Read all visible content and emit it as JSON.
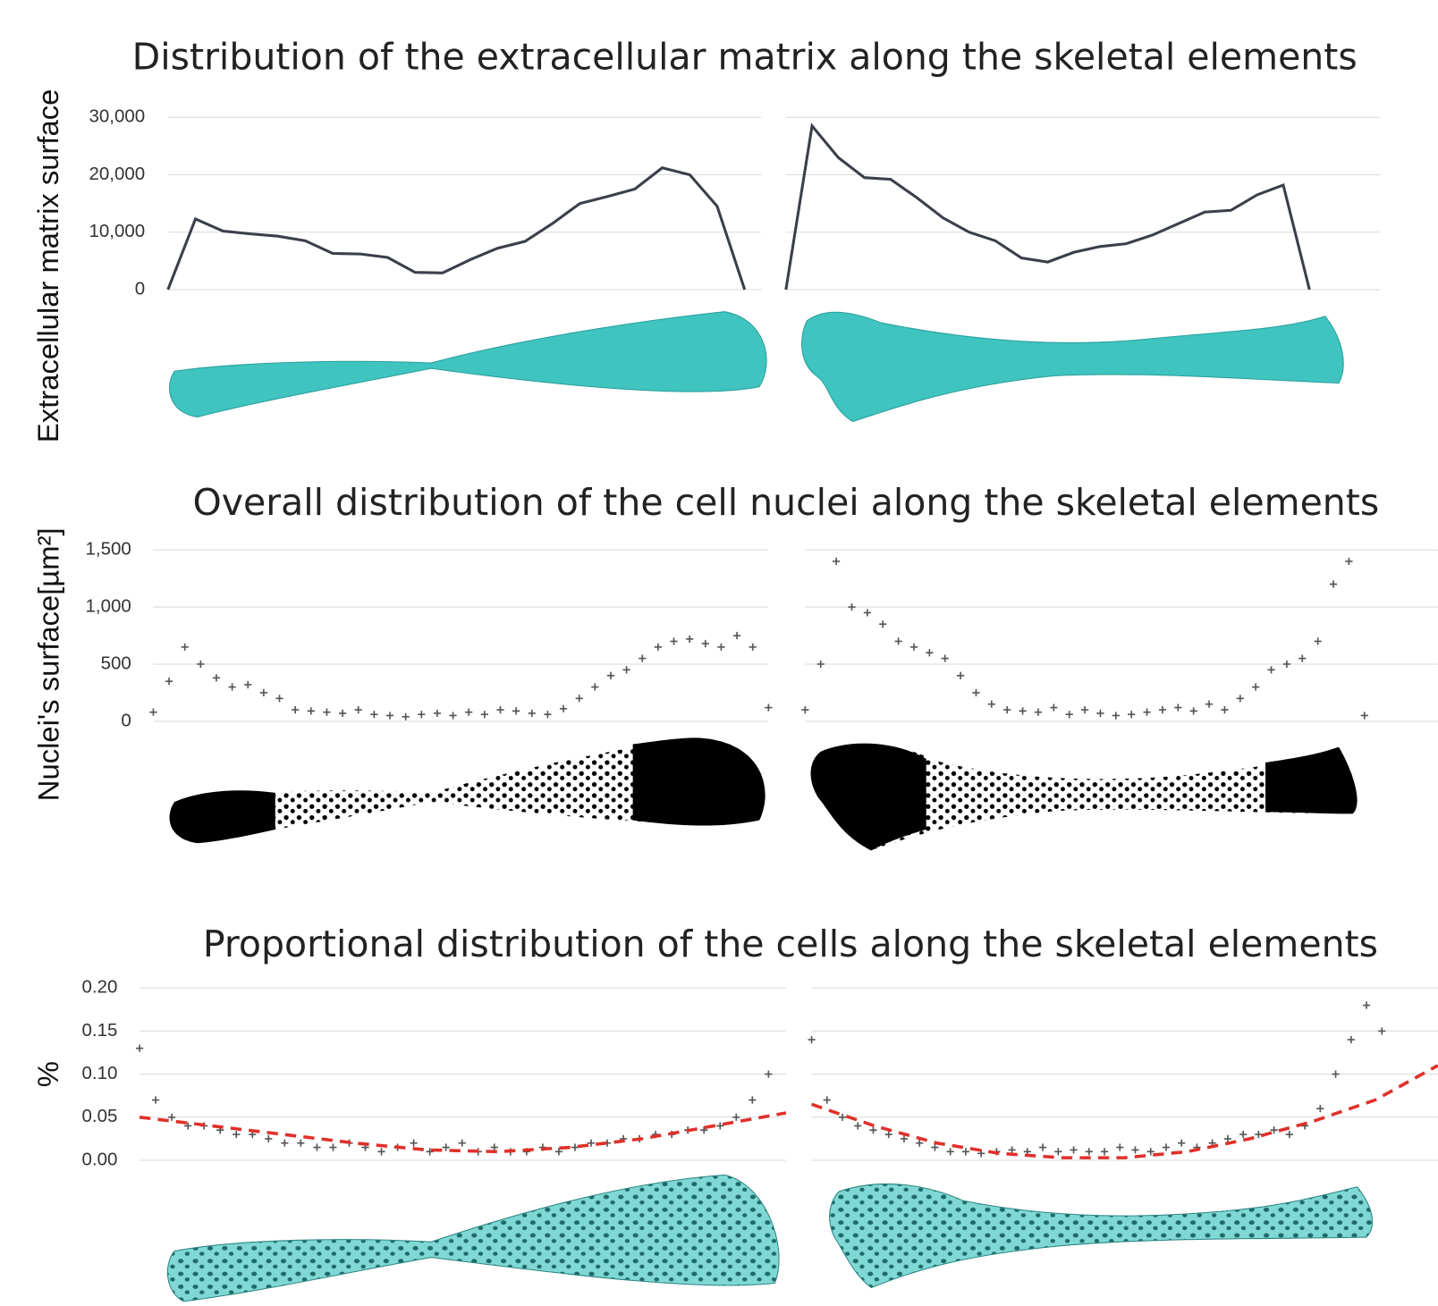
{
  "chart_data": [
    {
      "type": "line",
      "title": "Distribution of the extracellular matrix along the skeletal elements",
      "y_label": "Extracellular matrix surface",
      "ylim": [
        0,
        30000
      ],
      "yticks": [
        0,
        {
          "value": 10000,
          "label": "10,000"
        },
        {
          "value": 20000,
          "label": "20,000"
        },
        {
          "value": 30000,
          "label": "30,000"
        }
      ],
      "grid": true,
      "series": [
        {
          "color": "#3a3f4a",
          "values": [
            0,
            12300,
            10200,
            9700,
            9300,
            8500,
            6300,
            6200,
            5600,
            3000,
            2900,
            5200,
            7200,
            8400,
            11500,
            15000,
            16200,
            17500,
            21200,
            20000,
            14500,
            0
          ]
        },
        {
          "color": "#3a3f4a",
          "values": [
            0,
            28500,
            23000,
            19500,
            19200,
            16000,
            12500,
            10000,
            8500,
            5500,
            4800,
            6500,
            7500,
            8000,
            9500,
            11500,
            13500,
            13800,
            16500,
            18200,
            0
          ]
        }
      ]
    },
    {
      "type": "scatter",
      "title": "Overall distribution of the cell nuclei along the skeletal elements",
      "y_label": "Nuclei's surface[µm²]",
      "ylim": [
        0,
        1500
      ],
      "yticks": [
        0,
        500,
        {
          "value": 1000,
          "label": "1,000"
        },
        {
          "value": 1500,
          "label": "1,500"
        }
      ],
      "grid": true,
      "series": [
        {
          "color": "#555555",
          "values": [
            80,
            350,
            650,
            500,
            380,
            300,
            320,
            250,
            200,
            100,
            90,
            80,
            70,
            100,
            60,
            50,
            40,
            60,
            70,
            50,
            80,
            60,
            100,
            90,
            70,
            60,
            110,
            200,
            300,
            400,
            450,
            550,
            650,
            700,
            720,
            680,
            650,
            750,
            650,
            120
          ]
        },
        {
          "color": "#555555",
          "values": [
            100,
            500,
            1400,
            1000,
            950,
            850,
            700,
            650,
            600,
            550,
            400,
            250,
            150,
            100,
            90,
            80,
            120,
            60,
            100,
            70,
            50,
            60,
            80,
            100,
            120,
            90,
            150,
            100,
            200,
            300,
            450,
            500,
            550,
            700,
            1200,
            1400,
            50
          ]
        }
      ]
    },
    {
      "type": "scatter",
      "title": "Proportional distribution of the cells along the skeletal elements",
      "y_label": "%",
      "ylim": [
        0,
        0.2
      ],
      "yticks": [
        {
          "value": 0,
          "label": "0.00"
        },
        0.05,
        {
          "value": 0.1,
          "label": "0.10"
        },
        0.15,
        {
          "value": 0.2,
          "label": "0.20"
        }
      ],
      "grid": true,
      "series": [
        {
          "color": "#555555",
          "trend_color": "#e0302a",
          "values": [
            0.13,
            0.07,
            0.05,
            0.04,
            0.04,
            0.035,
            0.03,
            0.03,
            0.025,
            0.02,
            0.02,
            0.015,
            0.015,
            0.02,
            0.015,
            0.01,
            0.015,
            0.02,
            0.01,
            0.015,
            0.02,
            0.01,
            0.015,
            0.01,
            0.01,
            0.015,
            0.01,
            0.015,
            0.02,
            0.02,
            0.025,
            0.025,
            0.03,
            0.03,
            0.035,
            0.035,
            0.04,
            0.05,
            0.07,
            0.1
          ],
          "trend": [
            0.05,
            0.04,
            0.03,
            0.02,
            0.012,
            0.01,
            0.015,
            0.025,
            0.04,
            0.055
          ]
        },
        {
          "color": "#555555",
          "trend_color": "#e0302a",
          "values": [
            0.14,
            0.07,
            0.05,
            0.04,
            0.035,
            0.03,
            0.025,
            0.02,
            0.015,
            0.01,
            0.01,
            0.008,
            0.01,
            0.012,
            0.01,
            0.015,
            0.01,
            0.012,
            0.01,
            0.01,
            0.015,
            0.012,
            0.01,
            0.015,
            0.02,
            0.015,
            0.02,
            0.025,
            0.03,
            0.03,
            0.035,
            0.03,
            0.04,
            0.06,
            0.1,
            0.14,
            0.18,
            0.15
          ],
          "trend": [
            0.065,
            0.04,
            0.02,
            0.008,
            0.003,
            0.003,
            0.01,
            0.025,
            0.045,
            0.07,
            0.11
          ]
        }
      ]
    }
  ]
}
